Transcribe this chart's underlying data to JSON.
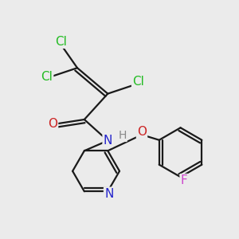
{
  "background_color": "#ebebeb",
  "bond_color": "#1a1a1a",
  "bond_width": 1.6,
  "dbo": 0.08,
  "atom_colors": {
    "Cl": "#22bb22",
    "O": "#cc2222",
    "N": "#2222cc",
    "F": "#cc44cc",
    "H": "#888888",
    "C": "#1a1a1a"
  },
  "font_size": 11,
  "font_size_h": 10
}
